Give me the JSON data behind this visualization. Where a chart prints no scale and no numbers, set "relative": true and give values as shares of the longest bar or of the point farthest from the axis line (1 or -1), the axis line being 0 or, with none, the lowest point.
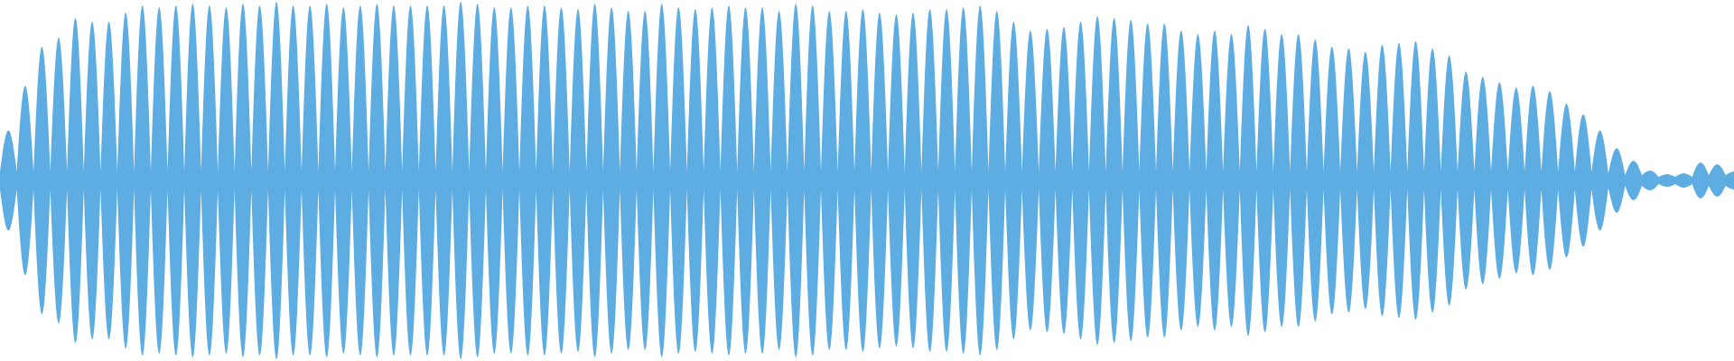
{
  "chart_data": {
    "type": "area",
    "relative": true,
    "legend": false,
    "categories": [
      null,
      null,
      null,
      null,
      null,
      null,
      null,
      null,
      null,
      null,
      null,
      null,
      null,
      null,
      null,
      null,
      null,
      null,
      null,
      null,
      null,
      null,
      null,
      null,
      null,
      null,
      null,
      null,
      null,
      null,
      null,
      null,
      null,
      null,
      null,
      null,
      null,
      null,
      null,
      null,
      null,
      null,
      null,
      null,
      null,
      null,
      null,
      null,
      null,
      null,
      null,
      null,
      null,
      null,
      null,
      null,
      null,
      null,
      null,
      null,
      null,
      null,
      null,
      null,
      null,
      null,
      null,
      null,
      null,
      null,
      null,
      null,
      null,
      null,
      null,
      null,
      null,
      null,
      null,
      null,
      null,
      null,
      null,
      null,
      null,
      null,
      null,
      null,
      null,
      null,
      null,
      null,
      null,
      null,
      null,
      null,
      null,
      null,
      null,
      null,
      null,
      null,
      null,
      null,
      null,
      null,
      null,
      null,
      null,
      null,
      null,
      null,
      null,
      null,
      null,
      null,
      null,
      null,
      null,
      null,
      null,
      null,
      null,
      null,
      null,
      null,
      null,
      null,
      null,
      null,
      null,
      null,
      null,
      null,
      null,
      null,
      null,
      null,
      null,
      null,
      null,
      null,
      null,
      null,
      null,
      null,
      null,
      null,
      null,
      null,
      null,
      null,
      null,
      null,
      null,
      null,
      null,
      null,
      null,
      null,
      null,
      null,
      null,
      null,
      null,
      null,
      null,
      null,
      null,
      null,
      null,
      null,
      null,
      null,
      null,
      null,
      null,
      null,
      null,
      null,
      null,
      null,
      null,
      null,
      null,
      null,
      null,
      null,
      null,
      null,
      null,
      null,
      null,
      null,
      null,
      null,
      null,
      null,
      null,
      null,
      null,
      null,
      null,
      null,
      null,
      null,
      null,
      null
    ],
    "series": [
      {
        "color": "#5dade2",
        "values": [
          0.05,
          0.28,
          0.05,
          0.53,
          0.05,
          0.75,
          0.05,
          0.8,
          0.05,
          0.91,
          0.05,
          0.89,
          0.05,
          0.89,
          0.05,
          0.94,
          0.05,
          0.98,
          0.05,
          0.97,
          0.05,
          0.98,
          0.05,
          0.99,
          0.05,
          0.98,
          0.05,
          0.97,
          0.05,
          0.99,
          0.05,
          0.98,
          0.05,
          1.0,
          0.05,
          0.98,
          0.05,
          0.98,
          0.05,
          0.99,
          0.05,
          0.97,
          0.05,
          0.98,
          0.05,
          0.99,
          0.05,
          0.98,
          0.05,
          0.98,
          0.05,
          0.98,
          0.05,
          0.98,
          0.05,
          1.0,
          0.05,
          0.99,
          0.05,
          0.97,
          0.05,
          0.97,
          0.05,
          0.98,
          0.05,
          0.98,
          0.05,
          0.97,
          0.05,
          0.96,
          0.05,
          0.99,
          0.05,
          0.97,
          0.05,
          0.95,
          0.05,
          0.95,
          0.05,
          0.99,
          0.05,
          0.97,
          0.05,
          0.96,
          0.05,
          0.97,
          0.05,
          0.98,
          0.05,
          0.97,
          0.05,
          0.97,
          0.05,
          0.95,
          0.05,
          0.99,
          0.05,
          0.98,
          0.05,
          0.95,
          0.05,
          0.95,
          0.05,
          0.96,
          0.05,
          0.94,
          0.05,
          0.93,
          0.05,
          0.94,
          0.05,
          0.96,
          0.05,
          0.96,
          0.05,
          0.97,
          0.05,
          0.98,
          0.05,
          0.95,
          0.05,
          0.89,
          0.05,
          0.84,
          0.05,
          0.85,
          0.05,
          0.86,
          0.05,
          0.89,
          0.05,
          0.92,
          0.05,
          0.91,
          0.05,
          0.9,
          0.05,
          0.88,
          0.05,
          0.88,
          0.05,
          0.84,
          0.05,
          0.82,
          0.05,
          0.84,
          0.05,
          0.82,
          0.05,
          0.87,
          0.05,
          0.85,
          0.05,
          0.82,
          0.05,
          0.82,
          0.05,
          0.79,
          0.05,
          0.75,
          0.05,
          0.74,
          0.05,
          0.72,
          0.05,
          0.76,
          0.05,
          0.77,
          0.05,
          0.78,
          0.05,
          0.74,
          0.05,
          0.7,
          0.05,
          0.61,
          0.05,
          0.58,
          0.05,
          0.55,
          0.05,
          0.52,
          0.05,
          0.53,
          0.05,
          0.5,
          0.05,
          0.43,
          0.05,
          0.37,
          0.05,
          0.28,
          0.04,
          0.18,
          0.03,
          0.11,
          0.03,
          0.055,
          0.02,
          0.035,
          0.02,
          0.04,
          0.02,
          0.1,
          0.03,
          0.09,
          0.03,
          0.05
        ]
      }
    ]
  }
}
